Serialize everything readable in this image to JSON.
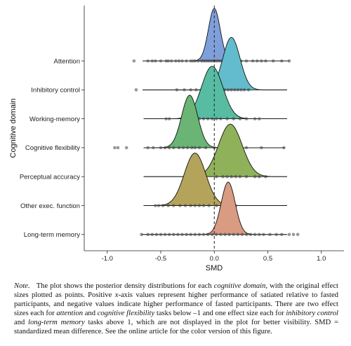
{
  "chart_data": {
    "type": "ridgeline",
    "xlabel": "SMD",
    "ylabel": "Cognitive domain",
    "xlim": [
      -1.1,
      1.1
    ],
    "xticks": [
      -1.0,
      -0.5,
      0.0,
      0.5,
      1.0
    ],
    "xtick_labels": [
      "-1.0",
      "-0.5",
      "0.0",
      "0.5",
      "1.0"
    ],
    "reference_line": 0.0,
    "grid": false,
    "legend": "none",
    "series": [
      {
        "name": "Attention",
        "color": "#7f9fda",
        "mean": 0.0,
        "sd": 0.055,
        "range": [
          -0.67,
          0.7
        ],
        "points": [
          -0.75,
          -0.62,
          -0.58,
          -0.55,
          -0.5,
          -0.45,
          -0.43,
          -0.4,
          -0.36,
          -0.33,
          -0.3,
          -0.26,
          -0.22,
          -0.2,
          -0.18,
          -0.15,
          -0.12,
          -0.1,
          -0.08,
          -0.06,
          -0.04,
          -0.02,
          0.0,
          0.02,
          0.04,
          0.06,
          0.08,
          0.1,
          0.13,
          0.16,
          0.19,
          0.22,
          0.25,
          0.3,
          0.36,
          0.4,
          0.44,
          0.48,
          0.55,
          0.63,
          0.7
        ]
      },
      {
        "name": "Inhibitory control",
        "color": "#62bccd",
        "mean": 0.16,
        "sd": 0.08,
        "range": [
          -0.67,
          0.68
        ],
        "points": [
          -0.73,
          -0.35,
          -0.28,
          -0.22,
          -0.17,
          -0.12,
          -0.09,
          -0.06,
          -0.03,
          -0.01,
          0.01,
          0.03,
          0.05,
          0.08,
          0.1,
          0.13,
          0.16,
          0.19,
          0.22,
          0.25,
          0.28,
          0.32
        ]
      },
      {
        "name": "Working-memory",
        "color": "#57bca2",
        "mean": -0.02,
        "sd": 0.1,
        "range": [
          -0.66,
          0.68
        ],
        "points": [
          -0.45,
          -0.42,
          -0.3,
          -0.25,
          -0.2,
          -0.14,
          -0.1,
          -0.06,
          -0.02,
          0.02,
          0.06,
          0.12,
          0.18,
          0.24,
          0.3,
          0.38,
          0.42
        ]
      },
      {
        "name": "Cognitive flexibility",
        "color": "#6ab575",
        "mean": -0.23,
        "sd": 0.075,
        "range": [
          -0.66,
          0.66
        ],
        "points": [
          -0.93,
          -0.9,
          -0.82,
          -0.62,
          -0.57,
          -0.5,
          -0.46,
          -0.42,
          -0.38,
          -0.33,
          -0.29,
          -0.25,
          -0.21,
          -0.18,
          -0.14,
          -0.08,
          0.0,
          0.08,
          0.13,
          0.18,
          0.3,
          0.44,
          0.65
        ]
      },
      {
        "name": "Perceptual accuracy",
        "color": "#8fb15a",
        "mean": 0.15,
        "sd": 0.11,
        "range": [
          -0.66,
          0.68
        ],
        "points": [
          0.02,
          0.08,
          0.12,
          0.16,
          0.2,
          0.24,
          0.3,
          0.38,
          0.42,
          0.48
        ]
      },
      {
        "name": "Other exec. function",
        "color": "#b4a35a",
        "mean": -0.18,
        "sd": 0.1,
        "range": [
          -0.66,
          0.68
        ],
        "points": [
          -0.55,
          -0.52,
          -0.48,
          -0.43,
          -0.38,
          -0.32,
          -0.27,
          -0.22,
          -0.18,
          -0.14,
          -0.1,
          -0.05,
          0.02,
          0.1,
          0.2
        ]
      },
      {
        "name": "Long-term memory",
        "color": "#d99b82",
        "mean": 0.13,
        "sd": 0.065,
        "range": [
          -0.68,
          0.68
        ],
        "points": [
          -0.68,
          -0.62,
          -0.58,
          -0.54,
          -0.5,
          -0.46,
          -0.42,
          -0.38,
          -0.34,
          -0.3,
          -0.26,
          -0.22,
          -0.18,
          -0.14,
          -0.1,
          -0.06,
          -0.02,
          0.02,
          0.06,
          0.1,
          0.14,
          0.18,
          0.22,
          0.26,
          0.3,
          0.34,
          0.38,
          0.42,
          0.46,
          0.52,
          0.58,
          0.63,
          0.7,
          0.74,
          0.78
        ]
      }
    ]
  },
  "note": {
    "label": "Note.",
    "text_parts": [
      {
        "t": "The plot shows the posterior density distributions for each "
      },
      {
        "t": "cognitive domain",
        "i": true
      },
      {
        "t": ", with the original effect sizes plotted as points. Positive "
      },
      {
        "t": "x",
        "i": true
      },
      {
        "t": "-axis values represent higher performance of satiated relative to fasted participants, and negative values indicate higher performance of fasted participants. There are two effect sizes each for "
      },
      {
        "t": "attention",
        "i": true
      },
      {
        "t": " and "
      },
      {
        "t": "cognitive flexibility",
        "i": true
      },
      {
        "t": " tasks below –1 and one effect size each for "
      },
      {
        "t": "inhibitory control",
        "i": true
      },
      {
        "t": " and "
      },
      {
        "t": "long-term memory",
        "i": true
      },
      {
        "t": " tasks above 1, which are not displayed in the plot for better visibility. SMD = standardized mean difference. See the online article for the color version of this figure."
      }
    ]
  }
}
